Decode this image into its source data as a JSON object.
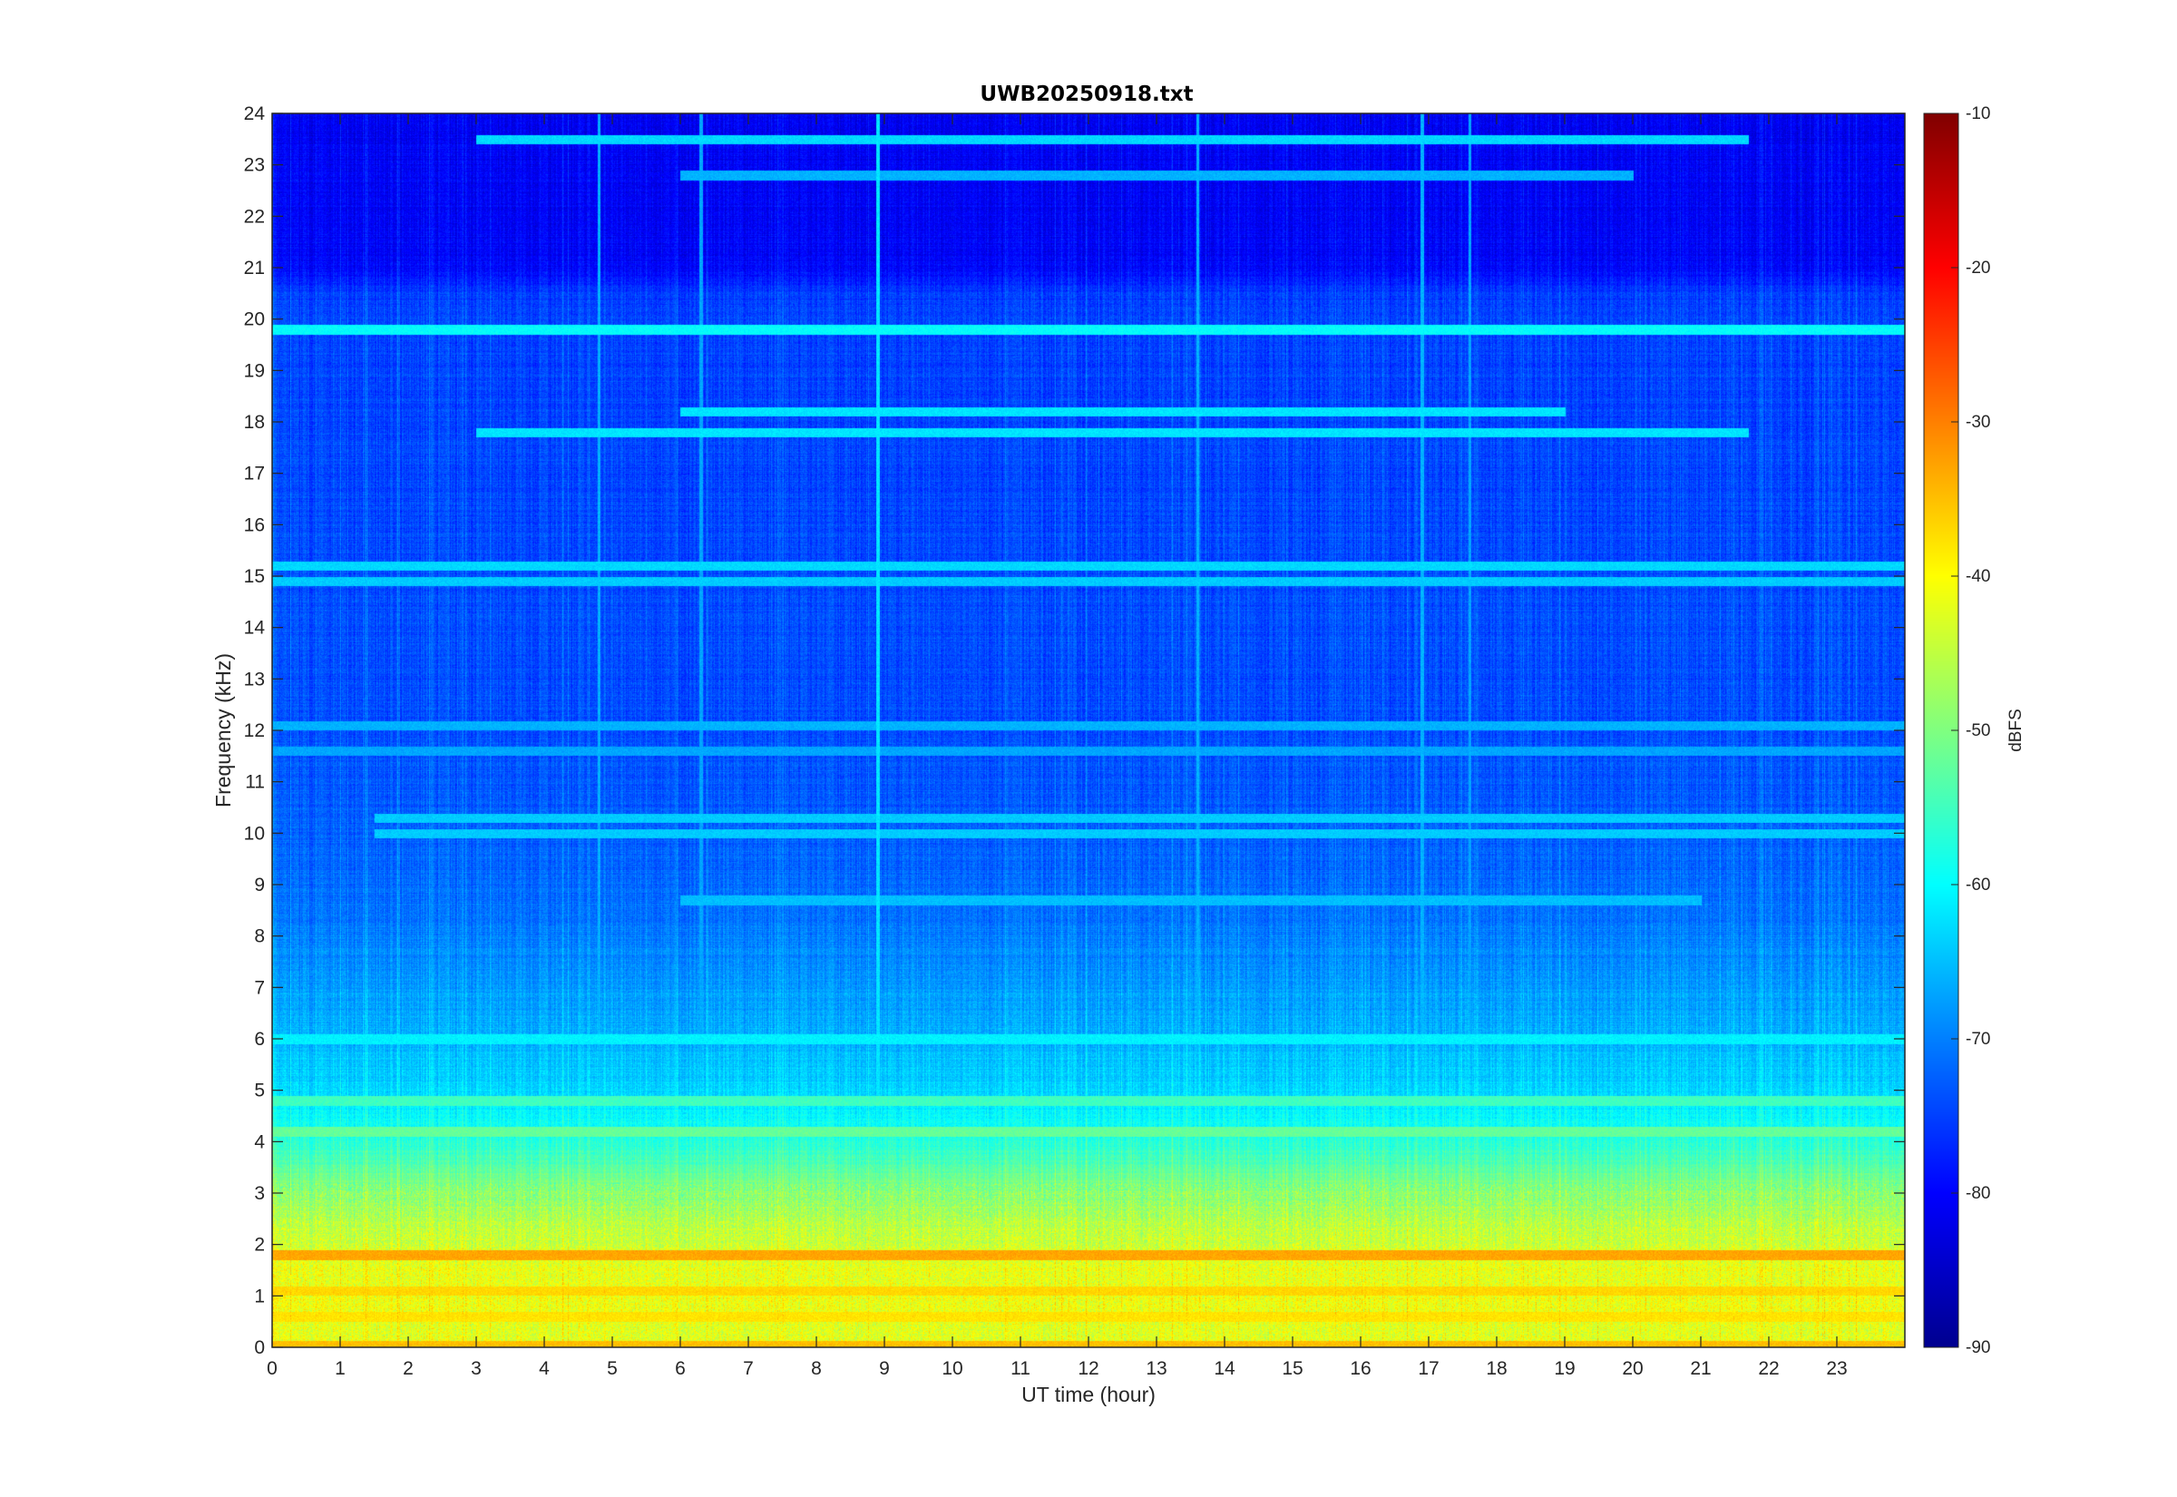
{
  "chart_data": {
    "type": "heatmap",
    "title": "UWB20250918.txt",
    "xlabel": "UT time (hour)",
    "ylabel": "Frequency (kHz)",
    "xlim": [
      0,
      24
    ],
    "ylim": [
      0,
      24
    ],
    "x_ticks": [
      "0",
      "1",
      "2",
      "3",
      "4",
      "5",
      "6",
      "7",
      "8",
      "9",
      "10",
      "11",
      "12",
      "13",
      "14",
      "15",
      "16",
      "17",
      "18",
      "19",
      "20",
      "21",
      "22",
      "23"
    ],
    "y_ticks": [
      "0",
      "1",
      "2",
      "3",
      "4",
      "5",
      "6",
      "7",
      "8",
      "9",
      "10",
      "11",
      "12",
      "13",
      "14",
      "15",
      "16",
      "17",
      "18",
      "19",
      "20",
      "21",
      "22",
      "23",
      "24"
    ],
    "colorbar": {
      "label": "dBFS",
      "colormap": "jet",
      "clim": [
        -90,
        -10
      ],
      "ticks": [
        "-90",
        "-80",
        "-70",
        "-60",
        "-50",
        "-40",
        "-30",
        "-20",
        "-10"
      ]
    },
    "background_level_dbfs": -76,
    "band_profile": [
      {
        "f": 0.0,
        "dbfs": -43
      },
      {
        "f": 0.5,
        "dbfs": -42
      },
      {
        "f": 1.0,
        "dbfs": -41
      },
      {
        "f": 1.5,
        "dbfs": -42
      },
      {
        "f": 2.0,
        "dbfs": -44
      },
      {
        "f": 2.5,
        "dbfs": -46
      },
      {
        "f": 3.0,
        "dbfs": -49
      },
      {
        "f": 3.5,
        "dbfs": -53
      },
      {
        "f": 4.0,
        "dbfs": -57
      },
      {
        "f": 4.5,
        "dbfs": -60
      },
      {
        "f": 5.0,
        "dbfs": -63
      },
      {
        "f": 6.0,
        "dbfs": -66
      },
      {
        "f": 7.0,
        "dbfs": -68
      },
      {
        "f": 8.0,
        "dbfs": -70
      },
      {
        "f": 9.0,
        "dbfs": -72
      },
      {
        "f": 12.0,
        "dbfs": -74
      },
      {
        "f": 20.5,
        "dbfs": -75
      },
      {
        "f": 21.0,
        "dbfs": -80
      },
      {
        "f": 24.0,
        "dbfs": -81
      }
    ],
    "lines": [
      {
        "f": 19.8,
        "t0": 0,
        "t1": 24,
        "dbfs": -60
      },
      {
        "f": 18.2,
        "t0": 6,
        "t1": 19,
        "dbfs": -62
      },
      {
        "f": 17.8,
        "t0": 3,
        "t1": 21.7,
        "dbfs": -62
      },
      {
        "f": 23.5,
        "t0": 3,
        "t1": 21.7,
        "dbfs": -63
      },
      {
        "f": 22.8,
        "t0": 6,
        "t1": 20,
        "dbfs": -66
      },
      {
        "f": 15.2,
        "t0": 0,
        "t1": 24,
        "dbfs": -63
      },
      {
        "f": 14.9,
        "t0": 0,
        "t1": 24,
        "dbfs": -64
      },
      {
        "f": 12.1,
        "t0": 0,
        "t1": 24,
        "dbfs": -66
      },
      {
        "f": 11.6,
        "t0": 0,
        "t1": 24,
        "dbfs": -67
      },
      {
        "f": 10.3,
        "t0": 1.5,
        "t1": 24,
        "dbfs": -64
      },
      {
        "f": 10.0,
        "t0": 1.5,
        "t1": 24,
        "dbfs": -64
      },
      {
        "f": 8.7,
        "t0": 6,
        "t1": 21,
        "dbfs": -65
      },
      {
        "f": 6.0,
        "t0": 0,
        "t1": 24,
        "dbfs": -61
      },
      {
        "f": 4.8,
        "t0": 0,
        "t1": 24,
        "dbfs": -55
      },
      {
        "f": 4.2,
        "t0": 0,
        "t1": 24,
        "dbfs": -52
      },
      {
        "f": 1.8,
        "t0": 0,
        "t1": 24,
        "dbfs": -33
      },
      {
        "f": 1.1,
        "t0": 0,
        "t1": 24,
        "dbfs": -37
      },
      {
        "f": 0.6,
        "t0": 0,
        "t1": 24,
        "dbfs": -38
      },
      {
        "f": 0.05,
        "t0": 0,
        "t1": 24,
        "dbfs": -35
      }
    ],
    "vertical_events": [
      {
        "t": 4.8,
        "dbfs": -66
      },
      {
        "t": 6.3,
        "dbfs": -67
      },
      {
        "t": 8.9,
        "dbfs": -62
      },
      {
        "t": 13.6,
        "dbfs": -66
      },
      {
        "t": 16.9,
        "dbfs": -66
      },
      {
        "t": 17.6,
        "dbfs": -67
      }
    ]
  }
}
